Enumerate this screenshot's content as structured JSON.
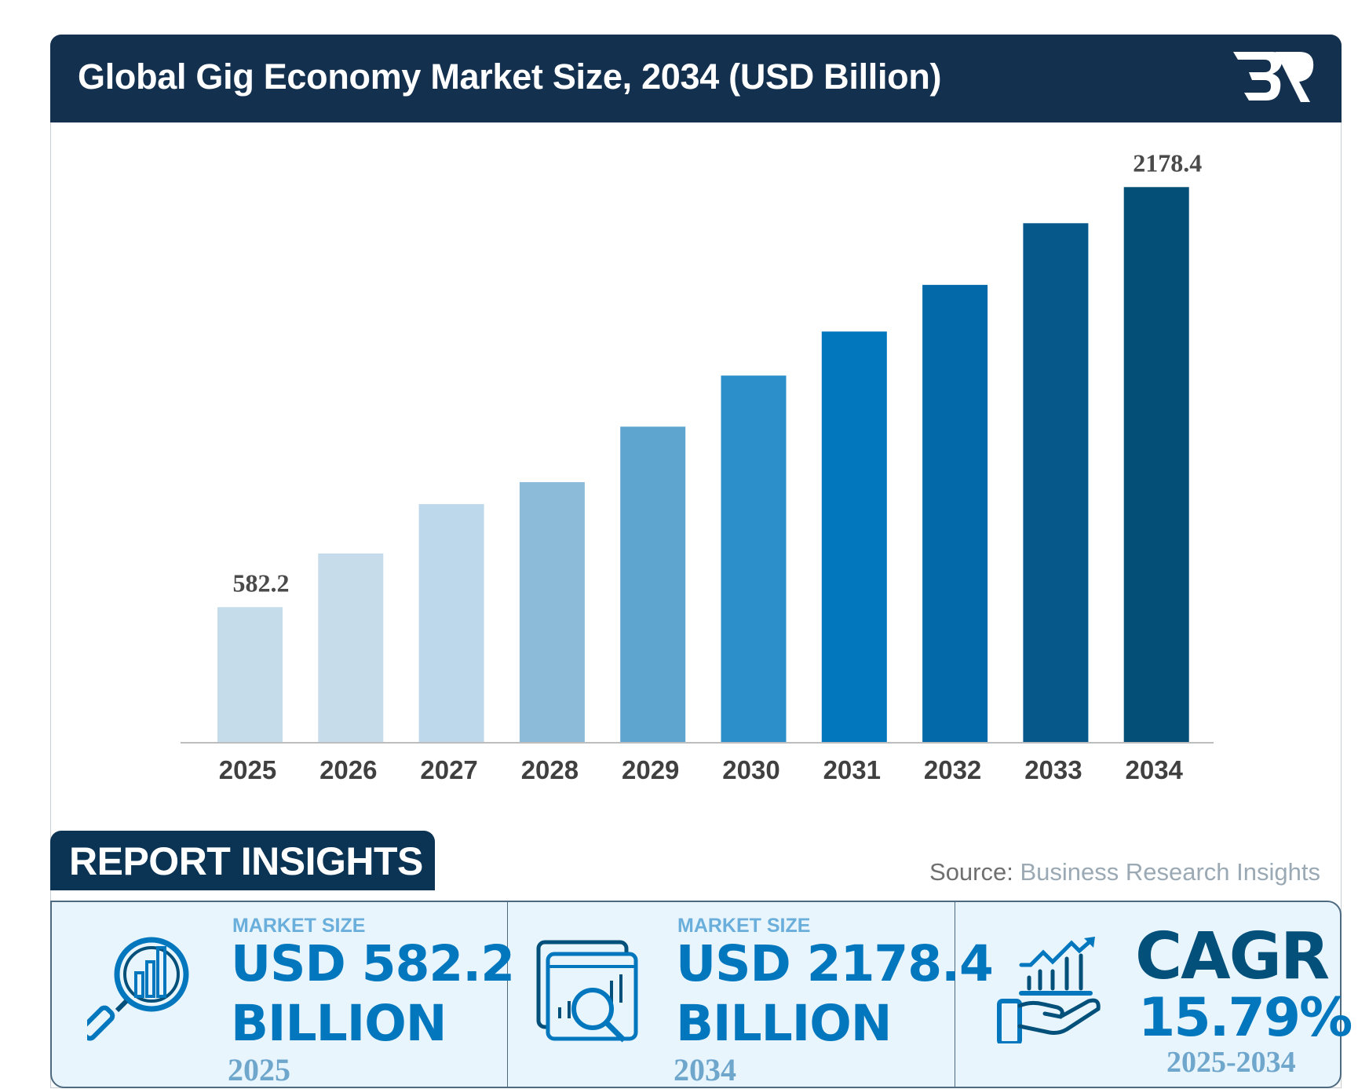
{
  "header": {
    "title": "Global Gig Economy Market Size, 2034 (USD Billion)",
    "logo_text": "BR"
  },
  "chart_data": {
    "type": "bar",
    "title": "Global Gig Economy Market Size, 2034 (USD Billion)",
    "categories": [
      "2025",
      "2026",
      "2027",
      "2028",
      "2029",
      "2030",
      "2031",
      "2032",
      "2033",
      "2034"
    ],
    "values": [
      582.2,
      786.3,
      973.7,
      1057.3,
      1268.1,
      1462.2,
      1629.5,
      1806.8,
      2041.1,
      2178.4
    ],
    "data_labels": {
      "0": "582.2",
      "9": "2178.4"
    },
    "colors": [
      "#c5dcea",
      "#c6dcea",
      "#bcd8ea",
      "#8cbbd9",
      "#5ea5d0",
      "#2d8fca",
      "#0277be",
      "#0469a8",
      "#06578a",
      "#044f78"
    ],
    "xlabel": "",
    "ylabel": "",
    "ylim": [
      67,
      2400
    ],
    "grid": false,
    "legend": "none"
  },
  "insights": {
    "tab_label": "REPORT INSIGHTS",
    "source_prefix": "Source:",
    "source_name": " Business Research Insights",
    "cards": [
      {
        "label": "MARKET SIZE",
        "value": "USD 582.2",
        "unit": "BILLION",
        "year": "2025"
      },
      {
        "label": "MARKET SIZE",
        "value": "USD 2178.4",
        "unit": "BILLION",
        "year": "2034"
      },
      {
        "label": "CAGR",
        "value": "15.79%",
        "year": "2025-2034"
      }
    ]
  }
}
